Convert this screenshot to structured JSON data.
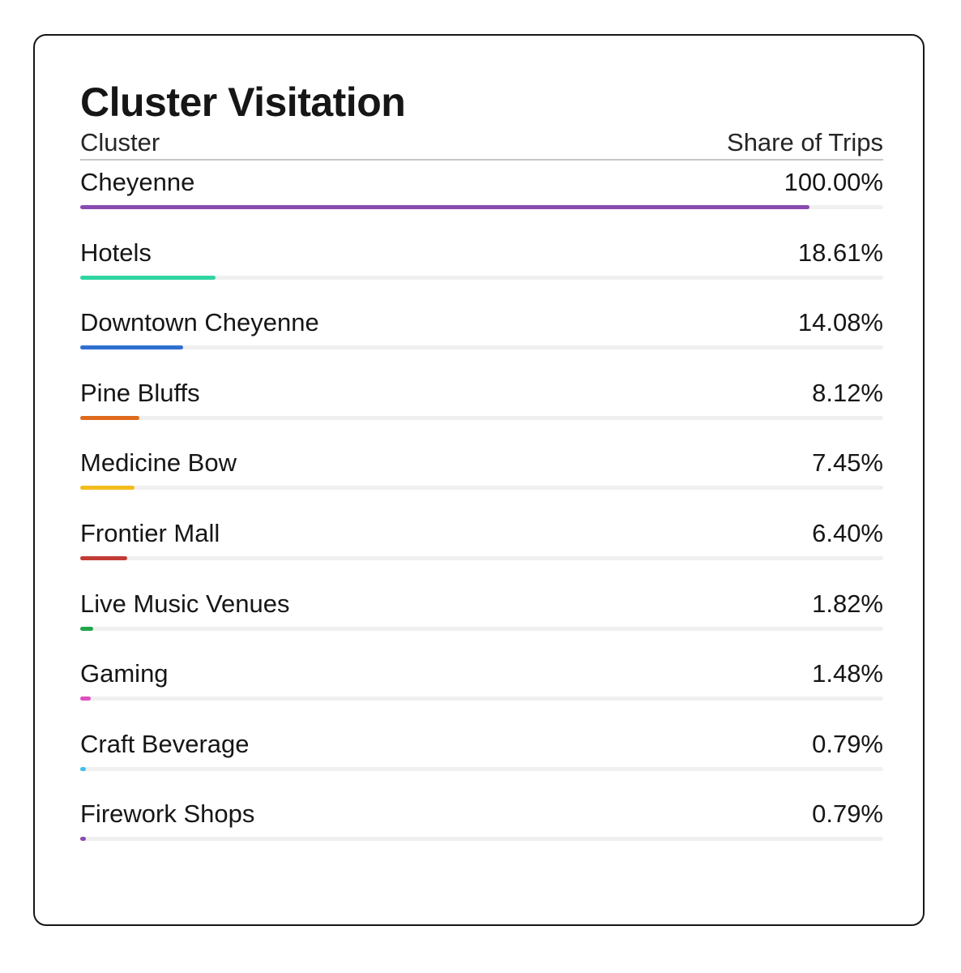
{
  "chart_data": {
    "type": "bar",
    "title": "Cluster Visitation",
    "columns": {
      "label": "Cluster",
      "value": "Share of Trips"
    },
    "max_value": 100,
    "rows": [
      {
        "label": "Cheyenne",
        "value": 100.0,
        "display": "100.00%",
        "color": "#8a4bb0"
      },
      {
        "label": "Hotels",
        "value": 18.61,
        "display": "18.61%",
        "color": "#2fd4a0"
      },
      {
        "label": "Downtown Cheyenne",
        "value": 14.08,
        "display": "14.08%",
        "color": "#2f6fd0"
      },
      {
        "label": "Pine Bluffs",
        "value": 8.12,
        "display": "8.12%",
        "color": "#e06a1c"
      },
      {
        "label": "Medicine Bow",
        "value": 7.45,
        "display": "7.45%",
        "color": "#f2bd1c"
      },
      {
        "label": "Frontier Mall",
        "value": 6.4,
        "display": "6.40%",
        "color": "#c23b35"
      },
      {
        "label": "Live Music Venues",
        "value": 1.82,
        "display": "1.82%",
        "color": "#1fa64a"
      },
      {
        "label": "Gaming",
        "value": 1.48,
        "display": "1.48%",
        "color": "#e04fbf"
      },
      {
        "label": "Craft Beverage",
        "value": 0.79,
        "display": "0.79%",
        "color": "#3fc0ee"
      },
      {
        "label": "Firework Shops",
        "value": 0.79,
        "display": "0.79%",
        "color": "#8a4bb0"
      }
    ]
  }
}
